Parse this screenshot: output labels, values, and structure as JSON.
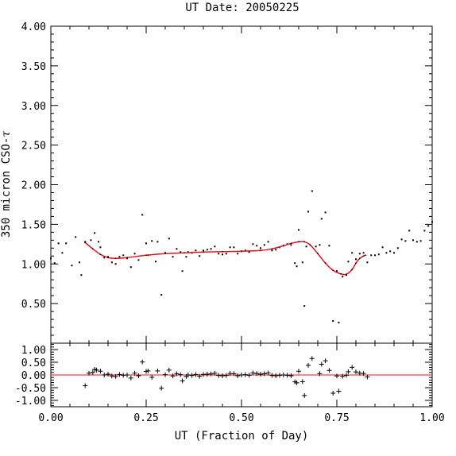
{
  "chart_data": {
    "type": "scatter",
    "title": "UT Date: 20050225",
    "xlabel": "UT (Fraction of Day)",
    "ylabel_prefix": "350 micron CSO-",
    "ylabel_symbol": "τ",
    "xlim": [
      0.0,
      1.0
    ],
    "x_ticks": [
      "0.00",
      "0.25",
      "0.50",
      "0.75",
      "1.00"
    ],
    "x_tick_values": [
      0.0,
      0.25,
      0.5,
      0.75,
      1.0
    ],
    "top_panel": {
      "ylim": [
        0.0,
        4.0
      ],
      "y_ticks": [
        "0.50",
        "1.00",
        "1.50",
        "2.00",
        "2.50",
        "3.00",
        "3.50",
        "4.00"
      ],
      "y_tick_values": [
        0.5,
        1.0,
        1.5,
        2.0,
        2.5,
        3.0,
        3.5,
        4.0
      ],
      "point_color": "#000000",
      "fit_color": "#e8141e",
      "points": [
        [
          0.0,
          1.07
        ],
        [
          0.01,
          1.01
        ],
        [
          0.02,
          1.26
        ],
        [
          0.03,
          1.14
        ],
        [
          0.04,
          1.26
        ],
        [
          0.055,
          0.98
        ],
        [
          0.065,
          1.34
        ],
        [
          0.075,
          1.02
        ],
        [
          0.08,
          0.86
        ],
        [
          0.09,
          1.28
        ],
        [
          0.105,
          1.3
        ],
        [
          0.115,
          1.39
        ],
        [
          0.125,
          1.28
        ],
        [
          0.13,
          1.21
        ],
        [
          0.14,
          1.08
        ],
        [
          0.15,
          1.09
        ],
        [
          0.16,
          1.02
        ],
        [
          0.17,
          1.0
        ],
        [
          0.18,
          1.09
        ],
        [
          0.19,
          1.11
        ],
        [
          0.2,
          1.07
        ],
        [
          0.21,
          0.96
        ],
        [
          0.22,
          1.13
        ],
        [
          0.23,
          1.05
        ],
        [
          0.24,
          1.62
        ],
        [
          0.25,
          1.26
        ],
        [
          0.255,
          1.11
        ],
        [
          0.265,
          1.29
        ],
        [
          0.275,
          1.03
        ],
        [
          0.28,
          1.28
        ],
        [
          0.29,
          0.61
        ],
        [
          0.3,
          1.14
        ],
        [
          0.31,
          1.32
        ],
        [
          0.32,
          1.09
        ],
        [
          0.33,
          1.19
        ],
        [
          0.34,
          1.15
        ],
        [
          0.345,
          0.91
        ],
        [
          0.355,
          1.09
        ],
        [
          0.36,
          1.15
        ],
        [
          0.37,
          1.14
        ],
        [
          0.38,
          1.17
        ],
        [
          0.39,
          1.1
        ],
        [
          0.4,
          1.17
        ],
        [
          0.41,
          1.18
        ],
        [
          0.42,
          1.19
        ],
        [
          0.43,
          1.22
        ],
        [
          0.44,
          1.13
        ],
        [
          0.45,
          1.12
        ],
        [
          0.46,
          1.13
        ],
        [
          0.47,
          1.21
        ],
        [
          0.48,
          1.21
        ],
        [
          0.49,
          1.13
        ],
        [
          0.5,
          1.16
        ],
        [
          0.51,
          1.17
        ],
        [
          0.52,
          1.15
        ],
        [
          0.53,
          1.25
        ],
        [
          0.54,
          1.23
        ],
        [
          0.55,
          1.2
        ],
        [
          0.56,
          1.24
        ],
        [
          0.57,
          1.28
        ],
        [
          0.58,
          1.17
        ],
        [
          0.59,
          1.18
        ],
        [
          0.6,
          1.21
        ],
        [
          0.61,
          1.23
        ],
        [
          0.62,
          1.25
        ],
        [
          0.63,
          1.24
        ],
        [
          0.64,
          1.01
        ],
        [
          0.645,
          0.97
        ],
        [
          0.65,
          1.43
        ],
        [
          0.66,
          1.02
        ],
        [
          0.665,
          0.47
        ],
        [
          0.67,
          1.22
        ],
        [
          0.675,
          1.66
        ],
        [
          0.685,
          1.92
        ],
        [
          0.695,
          1.22
        ],
        [
          0.705,
          1.24
        ],
        [
          0.71,
          1.57
        ],
        [
          0.72,
          1.65
        ],
        [
          0.73,
          1.23
        ],
        [
          0.74,
          0.28
        ],
        [
          0.75,
          0.91
        ],
        [
          0.755,
          0.26
        ],
        [
          0.765,
          0.84
        ],
        [
          0.775,
          0.86
        ],
        [
          0.78,
          1.03
        ],
        [
          0.79,
          1.14
        ],
        [
          0.8,
          1.06
        ],
        [
          0.81,
          1.13
        ],
        [
          0.82,
          1.14
        ],
        [
          0.83,
          1.02
        ],
        [
          0.84,
          1.11
        ],
        [
          0.85,
          1.11
        ],
        [
          0.86,
          1.12
        ],
        [
          0.87,
          1.21
        ],
        [
          0.88,
          1.14
        ],
        [
          0.89,
          1.16
        ],
        [
          0.9,
          1.14
        ],
        [
          0.91,
          1.2
        ],
        [
          0.92,
          1.31
        ],
        [
          0.93,
          1.29
        ],
        [
          0.94,
          1.42
        ],
        [
          0.95,
          1.3
        ],
        [
          0.96,
          1.28
        ],
        [
          0.97,
          1.29
        ],
        [
          0.98,
          1.42
        ],
        [
          0.99,
          1.48
        ],
        [
          1.0,
          1.53
        ]
      ],
      "fit": [
        [
          0.09,
          1.27
        ],
        [
          0.11,
          1.19
        ],
        [
          0.13,
          1.12
        ],
        [
          0.15,
          1.08
        ],
        [
          0.17,
          1.07
        ],
        [
          0.2,
          1.08
        ],
        [
          0.25,
          1.11
        ],
        [
          0.3,
          1.13
        ],
        [
          0.35,
          1.14
        ],
        [
          0.4,
          1.15
        ],
        [
          0.45,
          1.155
        ],
        [
          0.5,
          1.16
        ],
        [
          0.55,
          1.17
        ],
        [
          0.58,
          1.19
        ],
        [
          0.61,
          1.23
        ],
        [
          0.63,
          1.26
        ],
        [
          0.65,
          1.28
        ],
        [
          0.665,
          1.28
        ],
        [
          0.68,
          1.24
        ],
        [
          0.7,
          1.13
        ],
        [
          0.72,
          1.01
        ],
        [
          0.74,
          0.92
        ],
        [
          0.76,
          0.875
        ],
        [
          0.775,
          0.87
        ],
        [
          0.79,
          0.93
        ],
        [
          0.8,
          1.01
        ],
        [
          0.81,
          1.07
        ],
        [
          0.82,
          1.1
        ],
        [
          0.825,
          1.11
        ]
      ]
    },
    "bottom_panel": {
      "ylim": [
        -1.25,
        1.25
      ],
      "y_ticks": [
        "1.00",
        "0.50",
        "0.00",
        "-0.50",
        "-1.00"
      ],
      "y_tick_values": [
        1.0,
        0.5,
        0.0,
        -0.5,
        -1.0
      ],
      "zero_line_color": "#e8141e",
      "residuals": [
        [
          0.09,
          -0.42
        ],
        [
          0.1,
          0.07
        ],
        [
          0.11,
          0.1
        ],
        [
          0.115,
          0.22
        ],
        [
          0.12,
          0.19
        ],
        [
          0.13,
          0.15
        ],
        [
          0.14,
          0.0
        ],
        [
          0.15,
          0.03
        ],
        [
          0.16,
          -0.04
        ],
        [
          0.17,
          -0.06
        ],
        [
          0.18,
          0.02
        ],
        [
          0.19,
          -0.01
        ],
        [
          0.2,
          0.0
        ],
        [
          0.21,
          -0.12
        ],
        [
          0.22,
          0.07
        ],
        [
          0.23,
          -0.03
        ],
        [
          0.24,
          0.51
        ],
        [
          0.25,
          0.14
        ],
        [
          0.255,
          0.16
        ],
        [
          0.265,
          -0.09
        ],
        [
          0.28,
          0.16
        ],
        [
          0.29,
          -0.52
        ],
        [
          0.3,
          0.01
        ],
        [
          0.31,
          0.19
        ],
        [
          0.32,
          -0.04
        ],
        [
          0.33,
          0.05
        ],
        [
          0.34,
          0.01
        ],
        [
          0.345,
          -0.23
        ],
        [
          0.355,
          -0.06
        ],
        [
          0.36,
          0.0
        ],
        [
          0.37,
          -0.02
        ],
        [
          0.38,
          0.02
        ],
        [
          0.39,
          -0.05
        ],
        [
          0.4,
          0.02
        ],
        [
          0.41,
          0.03
        ],
        [
          0.42,
          0.04
        ],
        [
          0.43,
          0.07
        ],
        [
          0.44,
          -0.02
        ],
        [
          0.45,
          -0.03
        ],
        [
          0.46,
          -0.02
        ],
        [
          0.47,
          0.06
        ],
        [
          0.48,
          0.05
        ],
        [
          0.49,
          -0.03
        ],
        [
          0.5,
          0.0
        ],
        [
          0.51,
          0.01
        ],
        [
          0.52,
          -0.01
        ],
        [
          0.53,
          0.08
        ],
        [
          0.54,
          0.06
        ],
        [
          0.55,
          0.03
        ],
        [
          0.56,
          0.05
        ],
        [
          0.57,
          0.08
        ],
        [
          0.58,
          -0.02
        ],
        [
          0.59,
          -0.03
        ],
        [
          0.6,
          -0.01
        ],
        [
          0.61,
          0.0
        ],
        [
          0.62,
          -0.01
        ],
        [
          0.63,
          -0.03
        ],
        [
          0.64,
          -0.27
        ],
        [
          0.645,
          -0.31
        ],
        [
          0.65,
          0.15
        ],
        [
          0.66,
          -0.26
        ],
        [
          0.665,
          -0.81
        ],
        [
          0.675,
          0.38
        ],
        [
          0.685,
          0.65
        ],
        [
          0.705,
          0.05
        ],
        [
          0.71,
          0.42
        ],
        [
          0.72,
          0.56
        ],
        [
          0.73,
          0.18
        ],
        [
          0.74,
          -0.72
        ],
        [
          0.75,
          -0.04
        ],
        [
          0.755,
          -0.64
        ],
        [
          0.765,
          -0.05
        ],
        [
          0.775,
          -0.01
        ],
        [
          0.78,
          0.13
        ],
        [
          0.79,
          0.3
        ],
        [
          0.8,
          0.12
        ],
        [
          0.81,
          0.07
        ],
        [
          0.82,
          0.06
        ],
        [
          0.83,
          -0.08
        ]
      ]
    }
  }
}
